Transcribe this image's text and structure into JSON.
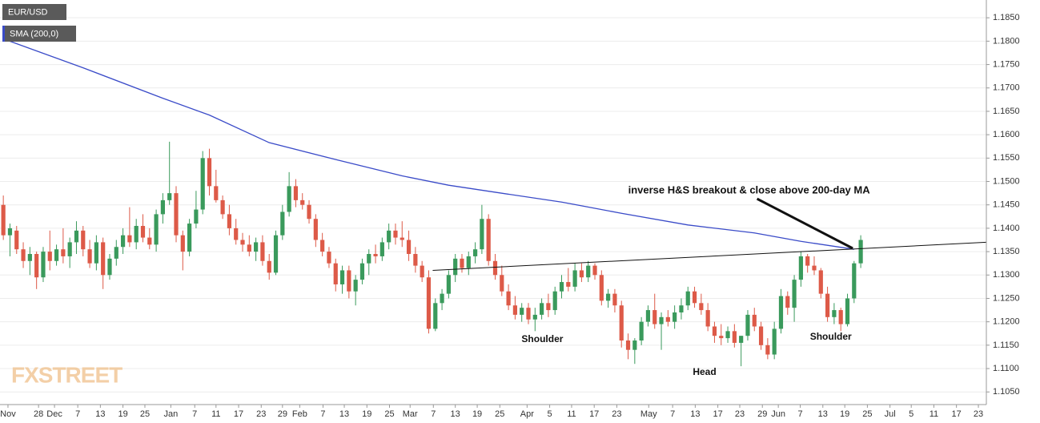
{
  "chart_data": {
    "type": "candlestick",
    "watermark": "FXSTREET",
    "xlim": [
      -0.5,
      147.9
    ],
    "ylim": [
      1.1023,
      1.1888
    ],
    "grid": true,
    "xticks": [
      {
        "value": 0.7,
        "label": "Nov"
      },
      {
        "value": 5.3,
        "label": "28"
      },
      {
        "value": 7.7,
        "label": "Dec"
      },
      {
        "value": 11.2,
        "label": "7"
      },
      {
        "value": 14.6,
        "label": "13"
      },
      {
        "value": 18.0,
        "label": "19"
      },
      {
        "value": 21.3,
        "label": "25"
      },
      {
        "value": 25.2,
        "label": "Jan"
      },
      {
        "value": 28.8,
        "label": "7"
      },
      {
        "value": 32.0,
        "label": "11"
      },
      {
        "value": 35.4,
        "label": "17"
      },
      {
        "value": 38.8,
        "label": "23"
      },
      {
        "value": 42.0,
        "label": "29"
      },
      {
        "value": 44.6,
        "label": "Feb"
      },
      {
        "value": 48.1,
        "label": "7"
      },
      {
        "value": 51.3,
        "label": "13"
      },
      {
        "value": 54.7,
        "label": "19"
      },
      {
        "value": 58.1,
        "label": "25"
      },
      {
        "value": 61.2,
        "label": "Mar"
      },
      {
        "value": 64.7,
        "label": "7"
      },
      {
        "value": 68.0,
        "label": "13"
      },
      {
        "value": 71.3,
        "label": "19"
      },
      {
        "value": 74.7,
        "label": "25"
      },
      {
        "value": 78.8,
        "label": "Apr"
      },
      {
        "value": 82.2,
        "label": "5"
      },
      {
        "value": 85.5,
        "label": "11"
      },
      {
        "value": 88.9,
        "label": "17"
      },
      {
        "value": 92.3,
        "label": "23"
      },
      {
        "value": 97.1,
        "label": "May"
      },
      {
        "value": 100.7,
        "label": "7"
      },
      {
        "value": 104.1,
        "label": "13"
      },
      {
        "value": 107.5,
        "label": "17"
      },
      {
        "value": 110.8,
        "label": "23"
      },
      {
        "value": 114.2,
        "label": "29"
      },
      {
        "value": 116.6,
        "label": "Jun"
      },
      {
        "value": 119.9,
        "label": "7"
      },
      {
        "value": 123.3,
        "label": "13"
      },
      {
        "value": 126.6,
        "label": "19"
      },
      {
        "value": 130.0,
        "label": "25"
      },
      {
        "value": 133.4,
        "label": "Jul"
      },
      {
        "value": 136.6,
        "label": "5"
      },
      {
        "value": 140.0,
        "label": "11"
      },
      {
        "value": 143.4,
        "label": "17"
      },
      {
        "value": 146.7,
        "label": "23"
      }
    ],
    "yticks": [
      {
        "value": 1.105,
        "label": "1.1050"
      },
      {
        "value": 1.11,
        "label": "1.1100"
      },
      {
        "value": 1.115,
        "label": "1.1150"
      },
      {
        "value": 1.12,
        "label": "1.1200"
      },
      {
        "value": 1.125,
        "label": "1.1250"
      },
      {
        "value": 1.13,
        "label": "1.1300"
      },
      {
        "value": 1.135,
        "label": "1.1350"
      },
      {
        "value": 1.14,
        "label": "1.1400"
      },
      {
        "value": 1.145,
        "label": "1.1450"
      },
      {
        "value": 1.15,
        "label": "1.1500"
      },
      {
        "value": 1.155,
        "label": "1.1550"
      },
      {
        "value": 1.16,
        "label": "1.1600"
      },
      {
        "value": 1.165,
        "label": "1.1650"
      },
      {
        "value": 1.17,
        "label": "1.1700"
      },
      {
        "value": 1.175,
        "label": "1.1750"
      },
      {
        "value": 1.18,
        "label": "1.1800"
      },
      {
        "value": 1.185,
        "label": "1.1850"
      }
    ],
    "series": [
      {
        "name": "EUR/USD",
        "type": "candlestick",
        "up_color": "#3a9a5c",
        "down_color": "#dd5a48",
        "ohlc": [
          [
            1.145,
            1.147,
            1.1375,
            1.1385
          ],
          [
            1.1385,
            1.141,
            1.134,
            1.14
          ],
          [
            1.1395,
            1.1405,
            1.1345,
            1.1355
          ],
          [
            1.1355,
            1.137,
            1.1315,
            1.133
          ],
          [
            1.133,
            1.136,
            1.13,
            1.1345
          ],
          [
            1.1345,
            1.135,
            1.127,
            1.1295
          ],
          [
            1.1295,
            1.136,
            1.1285,
            1.135
          ],
          [
            1.135,
            1.1395,
            1.131,
            1.133
          ],
          [
            1.133,
            1.1365,
            1.132,
            1.1355
          ],
          [
            1.1355,
            1.14,
            1.1325,
            1.134
          ],
          [
            1.134,
            1.138,
            1.1315,
            1.137
          ],
          [
            1.137,
            1.1415,
            1.1345,
            1.1395
          ],
          [
            1.1395,
            1.1405,
            1.134,
            1.1355
          ],
          [
            1.1355,
            1.1375,
            1.1315,
            1.1325
          ],
          [
            1.1325,
            1.1385,
            1.131,
            1.137
          ],
          [
            1.137,
            1.138,
            1.127,
            1.13
          ],
          [
            1.13,
            1.1345,
            1.129,
            1.1335
          ],
          [
            1.1335,
            1.1375,
            1.132,
            1.136
          ],
          [
            1.136,
            1.14,
            1.1345,
            1.1385
          ],
          [
            1.1385,
            1.1445,
            1.136,
            1.137
          ],
          [
            1.137,
            1.142,
            1.1355,
            1.1405
          ],
          [
            1.1405,
            1.143,
            1.137,
            1.138
          ],
          [
            1.138,
            1.14,
            1.1355,
            1.1365
          ],
          [
            1.1365,
            1.144,
            1.135,
            1.143
          ],
          [
            1.143,
            1.1475,
            1.141,
            1.146
          ],
          [
            1.146,
            1.1585,
            1.145,
            1.1475
          ],
          [
            1.1475,
            1.149,
            1.137,
            1.1385
          ],
          [
            1.1385,
            1.1395,
            1.131,
            1.135
          ],
          [
            1.135,
            1.142,
            1.134,
            1.141
          ],
          [
            1.141,
            1.148,
            1.14,
            1.144
          ],
          [
            1.144,
            1.1565,
            1.143,
            1.155
          ],
          [
            1.155,
            1.157,
            1.147,
            1.149
          ],
          [
            1.149,
            1.1525,
            1.1455,
            1.146
          ],
          [
            1.146,
            1.147,
            1.142,
            1.143
          ],
          [
            1.143,
            1.145,
            1.1385,
            1.14
          ],
          [
            1.14,
            1.142,
            1.1365,
            1.1375
          ],
          [
            1.1375,
            1.139,
            1.135,
            1.1365
          ],
          [
            1.1365,
            1.1385,
            1.134,
            1.135
          ],
          [
            1.135,
            1.138,
            1.133,
            1.137
          ],
          [
            1.137,
            1.1385,
            1.132,
            1.133
          ],
          [
            1.133,
            1.1345,
            1.129,
            1.1305
          ],
          [
            1.1305,
            1.1395,
            1.13,
            1.1385
          ],
          [
            1.1385,
            1.145,
            1.1375,
            1.1435
          ],
          [
            1.1435,
            1.152,
            1.1425,
            1.149
          ],
          [
            1.149,
            1.1505,
            1.1445,
            1.146
          ],
          [
            1.146,
            1.1475,
            1.144,
            1.145
          ],
          [
            1.145,
            1.146,
            1.141,
            1.142
          ],
          [
            1.142,
            1.143,
            1.136,
            1.1375
          ],
          [
            1.1375,
            1.139,
            1.134,
            1.135
          ],
          [
            1.135,
            1.136,
            1.1315,
            1.1325
          ],
          [
            1.1325,
            1.1335,
            1.1265,
            1.128
          ],
          [
            1.128,
            1.132,
            1.126,
            1.131
          ],
          [
            1.131,
            1.132,
            1.125,
            1.1265
          ],
          [
            1.1265,
            1.13,
            1.1235,
            1.129
          ],
          [
            1.129,
            1.1335,
            1.128,
            1.1325
          ],
          [
            1.1325,
            1.1355,
            1.13,
            1.1345
          ],
          [
            1.1345,
            1.1365,
            1.1325,
            1.134
          ],
          [
            1.134,
            1.138,
            1.133,
            1.137
          ],
          [
            1.137,
            1.141,
            1.1355,
            1.1395
          ],
          [
            1.1395,
            1.141,
            1.1365,
            1.138
          ],
          [
            1.138,
            1.1415,
            1.136,
            1.1375
          ],
          [
            1.1375,
            1.1395,
            1.133,
            1.1345
          ],
          [
            1.1345,
            1.136,
            1.1305,
            1.132
          ],
          [
            1.132,
            1.133,
            1.1285,
            1.1295
          ],
          [
            1.1295,
            1.131,
            1.1175,
            1.1185
          ],
          [
            1.1185,
            1.125,
            1.118,
            1.124
          ],
          [
            1.124,
            1.127,
            1.1225,
            1.126
          ],
          [
            1.126,
            1.131,
            1.125,
            1.13
          ],
          [
            1.13,
            1.1345,
            1.1285,
            1.1335
          ],
          [
            1.1335,
            1.1345,
            1.1305,
            1.1315
          ],
          [
            1.1315,
            1.135,
            1.13,
            1.134
          ],
          [
            1.134,
            1.137,
            1.1325,
            1.1355
          ],
          [
            1.1355,
            1.145,
            1.1345,
            1.142
          ],
          [
            1.142,
            1.143,
            1.132,
            1.133
          ],
          [
            1.133,
            1.1345,
            1.129,
            1.13
          ],
          [
            1.13,
            1.132,
            1.1255,
            1.1265
          ],
          [
            1.1265,
            1.128,
            1.1225,
            1.1235
          ],
          [
            1.1235,
            1.1255,
            1.1205,
            1.1215
          ],
          [
            1.1215,
            1.124,
            1.12,
            1.123
          ],
          [
            1.123,
            1.124,
            1.1195,
            1.1205
          ],
          [
            1.1205,
            1.123,
            1.118,
            1.1215
          ],
          [
            1.1215,
            1.125,
            1.1205,
            1.124
          ],
          [
            1.124,
            1.126,
            1.121,
            1.1225
          ],
          [
            1.1225,
            1.1275,
            1.1215,
            1.1265
          ],
          [
            1.1265,
            1.13,
            1.125,
            1.1285
          ],
          [
            1.1285,
            1.1315,
            1.1265,
            1.1275
          ],
          [
            1.1275,
            1.1325,
            1.1265,
            1.131
          ],
          [
            1.131,
            1.1325,
            1.1285,
            1.1295
          ],
          [
            1.1295,
            1.133,
            1.1285,
            1.132
          ],
          [
            1.132,
            1.1325,
            1.129,
            1.13
          ],
          [
            1.13,
            1.131,
            1.1235,
            1.1245
          ],
          [
            1.1245,
            1.127,
            1.123,
            1.126
          ],
          [
            1.126,
            1.127,
            1.122,
            1.1235
          ],
          [
            1.1235,
            1.1245,
            1.1145,
            1.116
          ],
          [
            1.116,
            1.1175,
            1.112,
            1.114
          ],
          [
            1.114,
            1.1165,
            1.111,
            1.116
          ],
          [
            1.116,
            1.121,
            1.115,
            1.12
          ],
          [
            1.12,
            1.1235,
            1.119,
            1.1225
          ],
          [
            1.1225,
            1.126,
            1.1185,
            1.1195
          ],
          [
            1.1195,
            1.122,
            1.114,
            1.121
          ],
          [
            1.121,
            1.1225,
            1.119,
            1.12
          ],
          [
            1.12,
            1.1235,
            1.1185,
            1.122
          ],
          [
            1.122,
            1.125,
            1.1205,
            1.1235
          ],
          [
            1.1235,
            1.1275,
            1.1225,
            1.1265
          ],
          [
            1.1265,
            1.1275,
            1.123,
            1.124
          ],
          [
            1.124,
            1.126,
            1.1215,
            1.1225
          ],
          [
            1.1225,
            1.124,
            1.118,
            1.119
          ],
          [
            1.119,
            1.12,
            1.1155,
            1.117
          ],
          [
            1.117,
            1.1195,
            1.115,
            1.1165
          ],
          [
            1.1165,
            1.119,
            1.1155,
            1.118
          ],
          [
            1.118,
            1.1195,
            1.1145,
            1.1155
          ],
          [
            1.1155,
            1.117,
            1.1105,
            1.117
          ],
          [
            1.117,
            1.1225,
            1.116,
            1.1215
          ],
          [
            1.1215,
            1.123,
            1.118,
            1.119
          ],
          [
            1.119,
            1.12,
            1.114,
            1.115
          ],
          [
            1.115,
            1.1165,
            1.112,
            1.113
          ],
          [
            1.113,
            1.12,
            1.112,
            1.1185
          ],
          [
            1.1185,
            1.127,
            1.1175,
            1.1255
          ],
          [
            1.1255,
            1.1265,
            1.1215,
            1.123
          ],
          [
            1.123,
            1.13,
            1.12,
            1.129
          ],
          [
            1.129,
            1.135,
            1.1275,
            1.134
          ],
          [
            1.134,
            1.1345,
            1.1305,
            1.132
          ],
          [
            1.132,
            1.134,
            1.13,
            1.131
          ],
          [
            1.131,
            1.1315,
            1.125,
            1.126
          ],
          [
            1.126,
            1.1275,
            1.12,
            1.121
          ],
          [
            1.121,
            1.124,
            1.1195,
            1.1225
          ],
          [
            1.1225,
            1.123,
            1.118,
            1.1195
          ],
          [
            1.1195,
            1.126,
            1.119,
            1.125
          ],
          [
            1.125,
            1.133,
            1.124,
            1.1325
          ],
          [
            1.1325,
            1.1385,
            1.1315,
            1.1375
          ]
        ]
      },
      {
        "name": "SMA (200,0)",
        "type": "line",
        "color": "#3a4bc8",
        "x": [
          0,
          12,
          24,
          31,
          40,
          50,
          60,
          67,
          74,
          84,
          93,
          103,
          113,
          120,
          128
        ],
        "values": [
          1.1805,
          1.1743,
          1.1678,
          1.1642,
          1.1583,
          1.1547,
          1.1512,
          1.1492,
          1.1477,
          1.1456,
          1.1432,
          1.1407,
          1.139,
          1.1372,
          1.1355
        ]
      }
    ],
    "neckline": {
      "x": [
        64.6,
        147.9
      ],
      "y": [
        1.131,
        1.137
      ]
    },
    "arrow": {
      "x": [
        113.4,
        127.8
      ],
      "y": [
        1.1463,
        1.1357
      ]
    },
    "annotations": [
      {
        "text": "inverse H&S breakout & close above 200-day MA",
        "x": 112.2,
        "y": 1.148
      },
      {
        "text": "Shoulder",
        "x": 81.1,
        "y": 1.1162
      },
      {
        "text": "Head",
        "x": 105.5,
        "y": 1.1092
      },
      {
        "text": "Shoulder",
        "x": 124.5,
        "y": 1.1167
      }
    ]
  }
}
